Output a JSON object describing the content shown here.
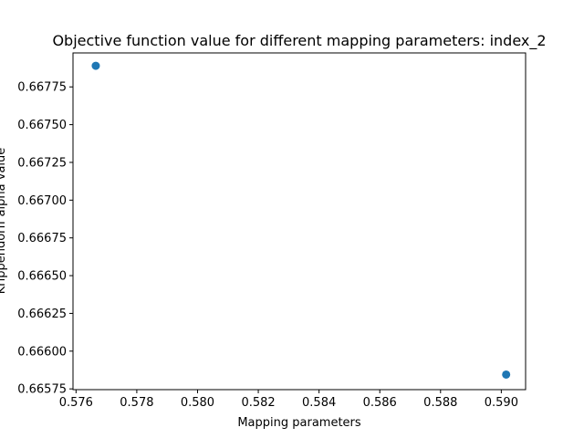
{
  "chart_data": {
    "type": "scatter",
    "title": "Objective function value for different mapping parameters: index_2",
    "xlabel": "Mapping parameters",
    "ylabel": "Krippendorff alpha value",
    "xlim": [
      0.5759,
      0.5908
    ],
    "ylim": [
      0.665745,
      0.667975
    ],
    "xticks": [
      0.576,
      0.578,
      0.58,
      0.582,
      0.584,
      0.586,
      0.588,
      0.59
    ],
    "xtick_labels": [
      "0.576",
      "0.578",
      "0.580",
      "0.582",
      "0.584",
      "0.586",
      "0.588",
      "0.590"
    ],
    "yticks": [
      0.66575,
      0.666,
      0.66625,
      0.6665,
      0.66675,
      0.667,
      0.66725,
      0.6675,
      0.66775
    ],
    "ytick_labels": [
      "0.66575",
      "0.66600",
      "0.66625",
      "0.66650",
      "0.66675",
      "0.66700",
      "0.66725",
      "0.66750",
      "0.66775"
    ],
    "series": [
      {
        "color": "#1f77b4",
        "points": [
          {
            "x": 0.57665,
            "y": 0.66789
          },
          {
            "x": 0.59016,
            "y": 0.665845
          }
        ]
      }
    ],
    "grid": false,
    "legend": "none"
  }
}
